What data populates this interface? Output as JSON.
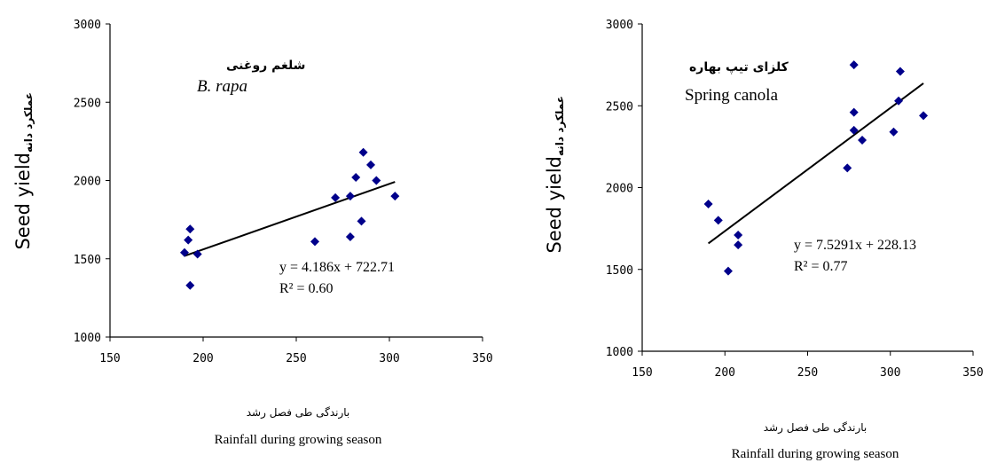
{
  "chart_data": [
    {
      "type": "scatter",
      "title_fa": "شلغم روغنی",
      "title_en": "B. rapa",
      "xlabel_fa": "بارندگی طی فصل رشد",
      "xlabel_en": "Rainfall during growing season",
      "ylabel_en": "Seed yield",
      "ylabel_fa": "عملکرد دانه",
      "xlim": [
        150,
        350
      ],
      "ylim": [
        1000,
        3000
      ],
      "xticks": [
        "150",
        "200",
        "250",
        "300",
        "350"
      ],
      "yticks": [
        "3000",
        "2500",
        "2000",
        "1500",
        "1000"
      ],
      "grid": false,
      "series": [
        {
          "x": [
            190,
            192,
            193,
            193,
            197,
            260,
            271,
            279,
            279,
            282,
            285,
            286,
            290,
            293,
            303
          ],
          "y": [
            1540,
            1620,
            1690,
            1330,
            1530,
            1610,
            1890,
            1900,
            1640,
            2020,
            1740,
            2180,
            2100,
            2000,
            1900
          ],
          "color": "#00008B"
        }
      ],
      "trendline": {
        "x": [
          190,
          303
        ],
        "y": [
          1518,
          1991
        ]
      },
      "equation": "y = 4.186x + 722.71",
      "r2": "R² = 0.60"
    },
    {
      "type": "scatter",
      "title_fa": "کلزای تیپ بهاره",
      "title_en": "Spring canola",
      "xlabel_fa": "بارندگی طی فصل رشد",
      "xlabel_en": "Rainfall during growing season",
      "ylabel_en": "Seed yield",
      "ylabel_fa": "عملکرد دانه",
      "xlim": [
        150,
        350
      ],
      "ylim": [
        1000,
        3000
      ],
      "xticks": [
        "150",
        "200",
        "250",
        "300",
        "350"
      ],
      "yticks": [
        "3000",
        "2500",
        "2000",
        "1500",
        "1000"
      ],
      "grid": false,
      "series": [
        {
          "x": [
            190,
            196,
            202,
            208,
            208,
            274,
            278,
            278,
            278,
            283,
            302,
            305,
            306,
            320
          ],
          "y": [
            1900,
            1800,
            1490,
            1710,
            1650,
            2120,
            2460,
            2350,
            2750,
            2290,
            2340,
            2530,
            2710,
            2440
          ],
          "color": "#00008B"
        }
      ],
      "trendline": {
        "x": [
          190,
          320
        ],
        "y": [
          1659,
          2637
        ]
      },
      "equation": "y = 7.5291x + 228.13",
      "r2": "R² = 0.77"
    }
  ]
}
